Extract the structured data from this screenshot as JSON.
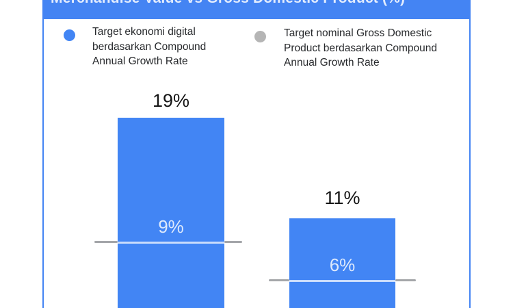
{
  "title": "Merchandise Value vs Gross Domestic Product (%)",
  "colors": {
    "brand_blue": "#4285f4",
    "titlebar_blue": "#4484f3",
    "legend_gray": "#b5b5b5",
    "marker_line_gray": "#a4a6a9",
    "bar_value_text": "#dde9fc",
    "label_text": "#141414",
    "legend_text": "#27292c"
  },
  "legend": [
    {
      "label": "Target ekonomi digital berdasarkan Compound Annual Growth Rate",
      "color": "#4285f4"
    },
    {
      "label": "Target nominal Gross Domestic Product berdasarkan Compound Annual Growth Rate",
      "color": "#b5b5b5"
    }
  ],
  "bars": [
    {
      "bar_label": "19%",
      "marker_label": "9%"
    },
    {
      "bar_label": "11%",
      "marker_label": "6%"
    }
  ],
  "chart_data": {
    "type": "bar",
    "title": "Merchandise Value vs Gross Domestic Product (%)",
    "categories": [
      "",
      ""
    ],
    "series": [
      {
        "name": "Target ekonomi digital berdasarkan Compound Annual Growth Rate",
        "render": "bar",
        "color": "#4285f4",
        "values": [
          19,
          11
        ],
        "labels": [
          "19%",
          "11%"
        ]
      },
      {
        "name": "Target nominal Gross Domestic Product berdasarkan Compound Annual Growth Rate",
        "render": "marker-line",
        "color": "#a4a6a9",
        "values": [
          9,
          6
        ],
        "labels": [
          "9%",
          "6%"
        ]
      }
    ],
    "unit": "%",
    "legend_position": "top",
    "grid": false,
    "notes": "Bars and chart baseline are cropped at the bottom edge of the image; title bar is cropped at the top edge."
  }
}
